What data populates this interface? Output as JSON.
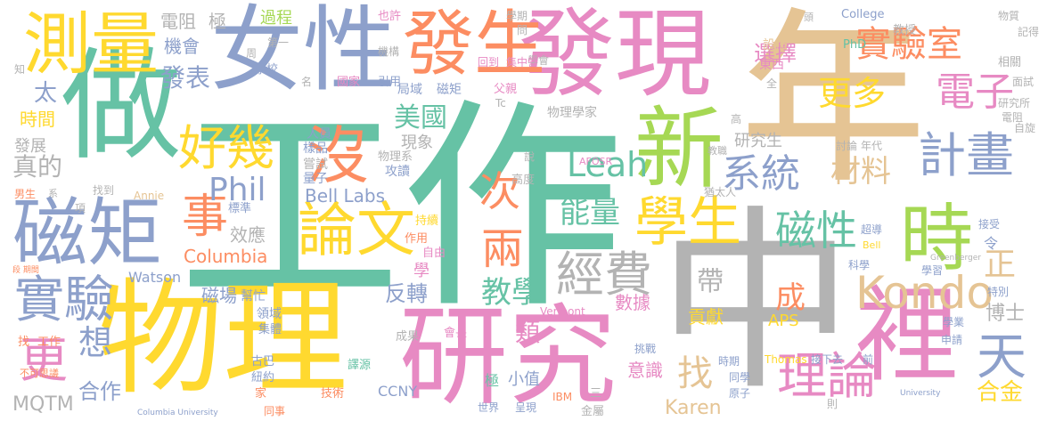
{
  "palette": {
    "teal": "#66c2a5",
    "orange": "#fc8d62",
    "blue": "#8da0cb",
    "pink": "#e78ac3",
    "green": "#a6d854",
    "yellow": "#ffd92f",
    "tan": "#e5c494",
    "gray": "#b3b3b3"
  },
  "words": [
    {
      "text": "工作",
      "color": "#66c2a5"
    },
    {
      "text": "年",
      "color": "#e5c494"
    },
    {
      "text": "中",
      "color": "#b3b3b3"
    },
    {
      "text": "物理",
      "color": "#ffd92f"
    },
    {
      "text": "研究",
      "color": "#e78ac3"
    },
    {
      "text": "做",
      "color": "#66c2a5"
    },
    {
      "text": "發現",
      "color": "#e78ac3"
    },
    {
      "text": "女性",
      "color": "#8da0cb"
    },
    {
      "text": "新",
      "color": "#a6d854"
    },
    {
      "text": "發生",
      "color": "#fc8d62"
    },
    {
      "text": "磁矩",
      "color": "#8da0cb"
    },
    {
      "text": "測量",
      "color": "#ffd92f"
    },
    {
      "text": "裡",
      "color": "#e78ac3"
    },
    {
      "text": "時",
      "color": "#a6d854"
    },
    {
      "text": "論文",
      "color": "#ffd92f"
    },
    {
      "text": "沒",
      "color": "#fc8d62"
    },
    {
      "text": "實驗",
      "color": "#8da0cb"
    },
    {
      "text": "Kondo",
      "color": "#e5c494"
    },
    {
      "text": "實驗室",
      "color": "#fc8d62"
    },
    {
      "text": "計畫",
      "color": "#8da0cb"
    },
    {
      "text": "理論",
      "color": "#e78ac3"
    },
    {
      "text": "電子",
      "color": "#e78ac3"
    },
    {
      "text": "學生",
      "color": "#ffd92f"
    },
    {
      "text": "好幾",
      "color": "#ffd92f"
    },
    {
      "text": "事",
      "color": "#fc8d62"
    },
    {
      "text": "經費",
      "color": "#b3b3b3"
    },
    {
      "text": "磁性",
      "color": "#66c2a5"
    },
    {
      "text": "系統",
      "color": "#8da0cb"
    },
    {
      "text": "更多",
      "color": "#ffd92f"
    },
    {
      "text": "材料",
      "color": "#e5c494"
    },
    {
      "text": "Leah",
      "color": "#66c2a5"
    },
    {
      "text": "美國",
      "color": "#66c2a5"
    },
    {
      "text": "Phil",
      "color": "#8da0cb"
    },
    {
      "text": "能量",
      "color": "#66c2a5"
    },
    {
      "text": "教學",
      "color": "#66c2a5"
    },
    {
      "text": "次",
      "color": "#fc8d62"
    },
    {
      "text": "兩",
      "color": "#fc8d62"
    },
    {
      "text": "天",
      "color": "#8da0cb"
    },
    {
      "text": "正",
      "color": "#e5c494"
    },
    {
      "text": "更",
      "color": "#e78ac3"
    },
    {
      "text": "想",
      "color": "#8da0cb"
    },
    {
      "text": "成",
      "color": "#fc8d62"
    },
    {
      "text": "帶",
      "color": "#b3b3b3"
    },
    {
      "text": "找",
      "color": "#e5c494"
    },
    {
      "text": "合金",
      "color": "#ffd92f"
    },
    {
      "text": "發表",
      "color": "#8da0cb"
    },
    {
      "text": "機會",
      "color": "#8da0cb"
    },
    {
      "text": "電阻",
      "color": "#b3b3b3"
    },
    {
      "text": "極",
      "color": "#b3b3b3"
    },
    {
      "text": "過程",
      "color": "#a6d854"
    },
    {
      "text": "選擇",
      "color": "#e78ac3"
    },
    {
      "text": "真的",
      "color": "#b3b3b3"
    },
    {
      "text": "發展",
      "color": "#b3b3b3"
    },
    {
      "text": "時間",
      "color": "#ffd92f"
    },
    {
      "text": "太",
      "color": "#8da0cb"
    },
    {
      "text": "現象",
      "color": "#b3b3b3"
    },
    {
      "text": "研究生",
      "color": "#b3b3b3"
    },
    {
      "text": "Bell Labs",
      "color": "#8da0cb"
    },
    {
      "text": "效應",
      "color": "#b3b3b3"
    },
    {
      "text": "Columbia",
      "color": "#fc8d62"
    },
    {
      "text": "反轉",
      "color": "#8da0cb"
    },
    {
      "text": "數據",
      "color": "#e78ac3"
    },
    {
      "text": "貢獻",
      "color": "#ffd92f"
    },
    {
      "text": "APS",
      "color": "#ffd92f"
    },
    {
      "text": "博士",
      "color": "#b3b3b3"
    },
    {
      "text": "合作",
      "color": "#8da0cb"
    },
    {
      "text": "MQTM",
      "color": "#b3b3b3"
    },
    {
      "text": "Karen",
      "color": "#e5c494"
    },
    {
      "text": "意識",
      "color": "#e78ac3"
    },
    {
      "text": "磁場",
      "color": "#8da0cb"
    },
    {
      "text": "Watson",
      "color": "#8da0cb"
    },
    {
      "text": "類",
      "color": "#e78ac3"
    },
    {
      "text": "CCNY",
      "color": "#8da0cb"
    },
    {
      "text": "小值",
      "color": "#8da0cb"
    },
    {
      "text": "物理學家",
      "color": "#b3b3b3"
    },
    {
      "text": "College",
      "color": "#8da0cb"
    },
    {
      "text": "PhD",
      "color": "#66c2a5"
    },
    {
      "text": "東西",
      "color": "#e78ac3"
    },
    {
      "text": "設法",
      "color": "#e5c494"
    },
    {
      "text": "教授",
      "color": "#b3b3b3"
    },
    {
      "text": "相關",
      "color": "#b3b3b3"
    },
    {
      "text": "記得",
      "color": "#b3b3b3"
    },
    {
      "text": "物質",
      "color": "#b3b3b3"
    },
    {
      "text": "面試",
      "color": "#b3b3b3"
    },
    {
      "text": "研究所",
      "color": "#b3b3b3"
    },
    {
      "text": "自旋",
      "color": "#b3b3b3"
    },
    {
      "text": "電阻",
      "color": "#b3b3b3"
    },
    {
      "text": "人員",
      "color": "#8da0cb"
    },
    {
      "text": "樣品",
      "color": "#8da0cb"
    },
    {
      "text": "嘗試",
      "color": "#b3b3b3"
    },
    {
      "text": "量子",
      "color": "#8da0cb"
    },
    {
      "text": "物理系",
      "color": "#b3b3b3"
    },
    {
      "text": "攻讀",
      "color": "#8da0cb"
    },
    {
      "text": "高度",
      "color": "#b3b3b3"
    },
    {
      "text": "局域",
      "color": "#8da0cb"
    },
    {
      "text": "磁矩",
      "color": "#8da0cb"
    },
    {
      "text": "父親",
      "color": "#e78ac3"
    },
    {
      "text": "學期",
      "color": "#b3b3b3"
    },
    {
      "text": "學會",
      "color": "#b3b3b3"
    },
    {
      "text": "回到",
      "color": "#e78ac3"
    },
    {
      "text": "集中營",
      "color": "#e78ac3"
    },
    {
      "text": "國家",
      "color": "#e78ac3"
    },
    {
      "text": "引用",
      "color": "#8da0cb"
    },
    {
      "text": "學校",
      "color": "#8da0cb"
    },
    {
      "text": "機構",
      "color": "#b3b3b3"
    },
    {
      "text": "也許",
      "color": "#e78ac3"
    },
    {
      "text": "持續",
      "color": "#ffd92f"
    },
    {
      "text": "作用",
      "color": "#fc8d62"
    },
    {
      "text": "自由",
      "color": "#e78ac3"
    },
    {
      "text": "學",
      "color": "#e78ac3"
    },
    {
      "text": "標準",
      "color": "#8da0cb"
    },
    {
      "text": "找到",
      "color": "#b3b3b3"
    },
    {
      "text": "男生",
      "color": "#fc8d62"
    },
    {
      "text": "幫忙",
      "color": "#8da0cb"
    },
    {
      "text": "領域",
      "color": "#8da0cb"
    },
    {
      "text": "集體",
      "color": "#8da0cb"
    },
    {
      "text": "找",
      "color": "#fc8d62"
    },
    {
      "text": "工作",
      "color": "#fc8d62"
    },
    {
      "text": "不可思議",
      "color": "#fc8d62"
    },
    {
      "text": "古巴",
      "color": "#8da0cb"
    },
    {
      "text": "紐約",
      "color": "#8da0cb"
    },
    {
      "text": "家",
      "color": "#fc8d62"
    },
    {
      "text": "技術",
      "color": "#fc8d62"
    },
    {
      "text": "同事",
      "color": "#fc8d62"
    },
    {
      "text": "譯源",
      "color": "#66c2a5"
    },
    {
      "text": "成果",
      "color": "#b3b3b3"
    },
    {
      "text": "會長",
      "color": "#e78ac3"
    },
    {
      "text": "極",
      "color": "#66c2a5"
    },
    {
      "text": "世界",
      "color": "#8da0cb"
    },
    {
      "text": "呈現",
      "color": "#8da0cb"
    },
    {
      "text": "金屬",
      "color": "#b3b3b3"
    },
    {
      "text": "三",
      "color": "#b3b3b3"
    },
    {
      "text": "IBM",
      "color": "#fc8d62"
    },
    {
      "text": "挑戰",
      "color": "#8da0cb"
    },
    {
      "text": "時期",
      "color": "#8da0cb"
    },
    {
      "text": "同學",
      "color": "#8da0cb"
    },
    {
      "text": "原子",
      "color": "#8da0cb"
    },
    {
      "text": "Thomas",
      "color": "#ffd92f"
    },
    {
      "text": "接下去",
      "color": "#8da0cb"
    },
    {
      "text": "前",
      "color": "#8da0cb"
    },
    {
      "text": "科學",
      "color": "#8da0cb"
    },
    {
      "text": "學習",
      "color": "#8da0cb"
    },
    {
      "text": "學業",
      "color": "#8da0cb"
    },
    {
      "text": "申請",
      "color": "#8da0cb"
    },
    {
      "text": "特別",
      "color": "#8da0cb"
    },
    {
      "text": "超導",
      "color": "#8da0cb"
    },
    {
      "text": "接受",
      "color": "#8da0cb"
    },
    {
      "text": "令",
      "color": "#8da0cb"
    },
    {
      "text": "討論",
      "color": "#b3b3b3"
    },
    {
      "text": "年代",
      "color": "#b3b3b3"
    },
    {
      "text": "AFOSR",
      "color": "#e78ac3"
    },
    {
      "text": "教職",
      "color": "#b3b3b3"
    },
    {
      "text": "猶太人",
      "color": "#b3b3b3"
    },
    {
      "text": "Vermont",
      "color": "#e78ac3"
    },
    {
      "text": "Annie",
      "color": "#e5c494"
    },
    {
      "text": "Tc",
      "color": "#b3b3b3"
    },
    {
      "text": "說",
      "color": "#b3b3b3"
    },
    {
      "text": "全",
      "color": "#b3b3b3"
    },
    {
      "text": "高",
      "color": "#b3b3b3"
    },
    {
      "text": "Bell",
      "color": "#ffd92f"
    },
    {
      "text": "Greenberger",
      "color": "#b3b3b3"
    },
    {
      "text": "University",
      "color": "#8da0cb"
    },
    {
      "text": "Columbia University",
      "color": "#8da0cb"
    },
    {
      "text": "周",
      "color": "#b3b3b3"
    },
    {
      "text": "第一",
      "color": "#b3b3b3"
    },
    {
      "text": "名",
      "color": "#b3b3b3"
    },
    {
      "text": "知",
      "color": "#b3b3b3"
    },
    {
      "text": "問",
      "color": "#b3b3b3"
    },
    {
      "text": "頭",
      "color": "#b3b3b3"
    },
    {
      "text": "則",
      "color": "#b3b3b3"
    },
    {
      "text": "項",
      "color": "#b3b3b3"
    },
    {
      "text": "系",
      "color": "#b3b3b3"
    },
    {
      "text": "段 期間",
      "color": "#fc8d62"
    }
  ]
}
